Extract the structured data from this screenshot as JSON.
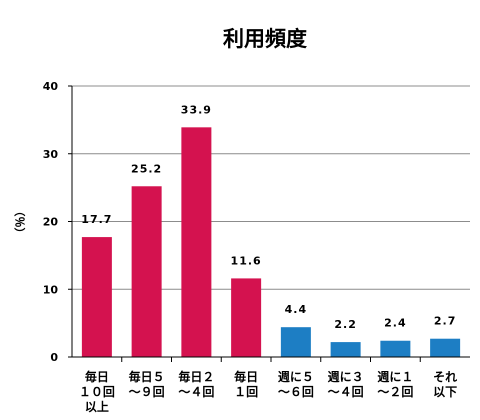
{
  "chart_data": {
    "type": "bar",
    "title": "利用頻度",
    "ylabel": "（％）",
    "xlabel": "",
    "ylim": [
      0,
      40
    ],
    "yticks": [
      0,
      10,
      20,
      30,
      40
    ],
    "grid": true,
    "legend": "none",
    "categories": [
      [
        "毎日",
        "１０回",
        "以上"
      ],
      [
        "毎日５",
        "～９回"
      ],
      [
        "毎日２",
        "～４回"
      ],
      [
        "毎日",
        "１回"
      ],
      [
        "週に５",
        "～６回"
      ],
      [
        "週に３",
        "～４回"
      ],
      [
        "週に１",
        "～２回"
      ],
      [
        "それ",
        "以下"
      ]
    ],
    "values": [
      17.7,
      25.2,
      33.9,
      11.6,
      4.4,
      2.2,
      2.4,
      2.7
    ],
    "value_labels": [
      "17.7",
      "25.2",
      "33.9",
      "11.6",
      "4.4",
      "2.2",
      "2.4",
      "2.7"
    ],
    "bar_colors": [
      "#d4124f",
      "#d4124f",
      "#d4124f",
      "#d4124f",
      "#1d7ec4",
      "#1d7ec4",
      "#1d7ec4",
      "#1d7ec4"
    ],
    "colors": {
      "daily": "#d4124f",
      "weekly": "#1d7ec4",
      "grid": "#8c8c8c",
      "axis": "#000000"
    }
  }
}
